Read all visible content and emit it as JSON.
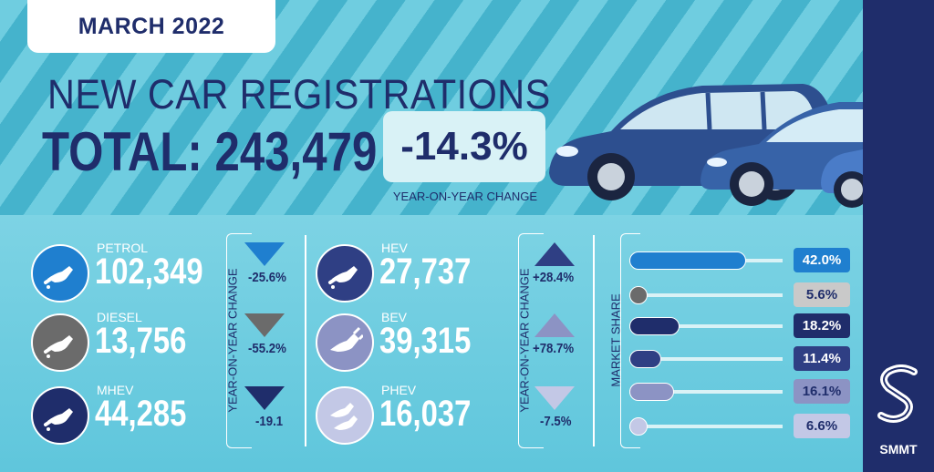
{
  "header": {
    "date": "MARCH 2022",
    "headline": "NEW CAR REGISTRATIONS",
    "total_label": "TOTAL: 243,479",
    "yoy_change": "-14.3%",
    "yoy_caption": "YEAR-ON-YEAR CHANGE"
  },
  "yoy_axis_label": "YEAR-ON-YEAR CHANGE",
  "market_share_label": "MARKET SHARE",
  "fuels": [
    {
      "label": "PETROL",
      "value": "102,349",
      "change": "-25.6%",
      "share": "42.0%",
      "share_value": 42.0,
      "color": "#1f7fcf"
    },
    {
      "label": "DIESEL",
      "value": "13,756",
      "change": "-55.2%",
      "share": "5.6%",
      "share_value": 5.6,
      "color": "#6b6b6b"
    },
    {
      "label": "MHEV",
      "value": "44,285",
      "change": "-19.1",
      "share": "18.2%",
      "share_value": 18.2,
      "color": "#1f2d6b"
    },
    {
      "label": "HEV",
      "value": "27,737",
      "change": "+28.4%",
      "share": "11.4%",
      "share_value": 11.4,
      "color": "#2f3f84"
    },
    {
      "label": "BEV",
      "value": "39,315",
      "change": "+78.7%",
      "share": "16.1%",
      "share_value": 16.1,
      "color": "#8c93c4"
    },
    {
      "label": "PHEV",
      "value": "16,037",
      "change": "-7.5%",
      "share": "6.6%",
      "share_value": 6.6,
      "color": "#c3c8e6"
    }
  ],
  "brand": {
    "name": "SMMT"
  },
  "colors": {
    "navy": "#1f2d6b",
    "sky": "#5fc6dc",
    "light": "#d9f2f6"
  }
}
